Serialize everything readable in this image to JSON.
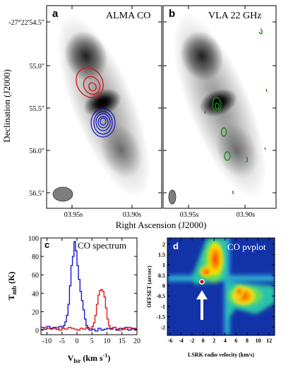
{
  "top_panels": {
    "a": {
      "letter": "a",
      "title": "ALMA CO"
    },
    "b": {
      "letter": "b",
      "title": "VLA 22 GHz"
    },
    "y_axis_label": "Declination (J2000)",
    "x_axis_label": "Right Ascension (J2000)",
    "y_ticks": [
      "-27°22'54.5\"",
      "55.0\"",
      "55.5\"",
      "56.0\"",
      "56.5\""
    ],
    "x_ticks": [
      "03.95s",
      "03.90s"
    ]
  },
  "panel_c": {
    "letter": "c",
    "title": "CO spectrum",
    "ylabel_main": "T",
    "ylabel_sub": "mb",
    "ylabel_unit": "(K)",
    "xlabel_main": "V",
    "xlabel_sub": "lsr",
    "xlabel_unit": "(km s",
    "xlabel_sup": "-1",
    "xlabel_close": ")"
  },
  "panel_d": {
    "letter": "d",
    "title": "CO  pvplot",
    "ylabel": "OFFSET (arcsec)",
    "xlabel": "LSRK radio velocity   (km/s)"
  },
  "chart_data": [
    {
      "type": "line",
      "xlim": [
        -12,
        20
      ],
      "ylim": [
        -5,
        100
      ],
      "x_ticks": [
        -10,
        -5,
        0,
        5,
        10,
        15,
        20
      ],
      "y_ticks": [
        0,
        20,
        40,
        60,
        80,
        100
      ],
      "colors": {
        "blue": "#1414cc",
        "red": "#e01a1a"
      },
      "series": [
        {
          "color": "blue",
          "x": [
            -12,
            -11,
            -10,
            -9,
            -8,
            -7,
            -6,
            -5,
            -4.5,
            -4,
            -3.5,
            -3,
            -2.5,
            -2,
            -1.5,
            -1,
            -0.5,
            0,
            0.5,
            1,
            1.5,
            2,
            2.5,
            3,
            3.5,
            4,
            5,
            6,
            7,
            8,
            9,
            10,
            11,
            12,
            13,
            14,
            15,
            16,
            17,
            18,
            19,
            20
          ],
          "y": [
            3,
            1,
            4,
            2,
            3,
            1,
            4,
            2,
            5,
            9,
            16,
            28,
            48,
            70,
            80,
            96,
            86,
            70,
            55,
            42,
            32,
            22,
            12,
            5,
            2,
            0,
            1,
            -1,
            2,
            0,
            1,
            2,
            1,
            3,
            0,
            2,
            1,
            3,
            0,
            2,
            1,
            2
          ]
        },
        {
          "color": "red",
          "x": [
            -12,
            -11,
            -10,
            -9,
            -8,
            -7,
            -6,
            -5,
            -4,
            -3,
            -2,
            -1,
            0,
            1,
            2,
            3,
            4,
            5,
            5.5,
            6,
            6.5,
            7,
            7.5,
            8,
            8.5,
            9,
            9.5,
            10,
            10.5,
            11,
            12,
            13,
            14,
            15,
            16,
            17,
            18,
            19,
            20
          ],
          "y": [
            1,
            3,
            2,
            1,
            2,
            3,
            0,
            2,
            1,
            3,
            2,
            1,
            0,
            2,
            1,
            3,
            2,
            4,
            8,
            16,
            28,
            38,
            43,
            44,
            42,
            36,
            24,
            12,
            5,
            2,
            3,
            1,
            0,
            2,
            1,
            3,
            1,
            2,
            2
          ]
        }
      ]
    }
  ],
  "pv_axes": {
    "x_ticks": [
      -6,
      -4,
      -2,
      0,
      2,
      4,
      6,
      8,
      10,
      12
    ],
    "y_ticks": [
      2,
      1.5,
      1,
      0.5,
      0,
      -0.5,
      -1,
      -1.5,
      -2
    ],
    "xlim": [
      -6.5,
      13
    ],
    "ylim": [
      -2.4,
      2.3
    ]
  }
}
